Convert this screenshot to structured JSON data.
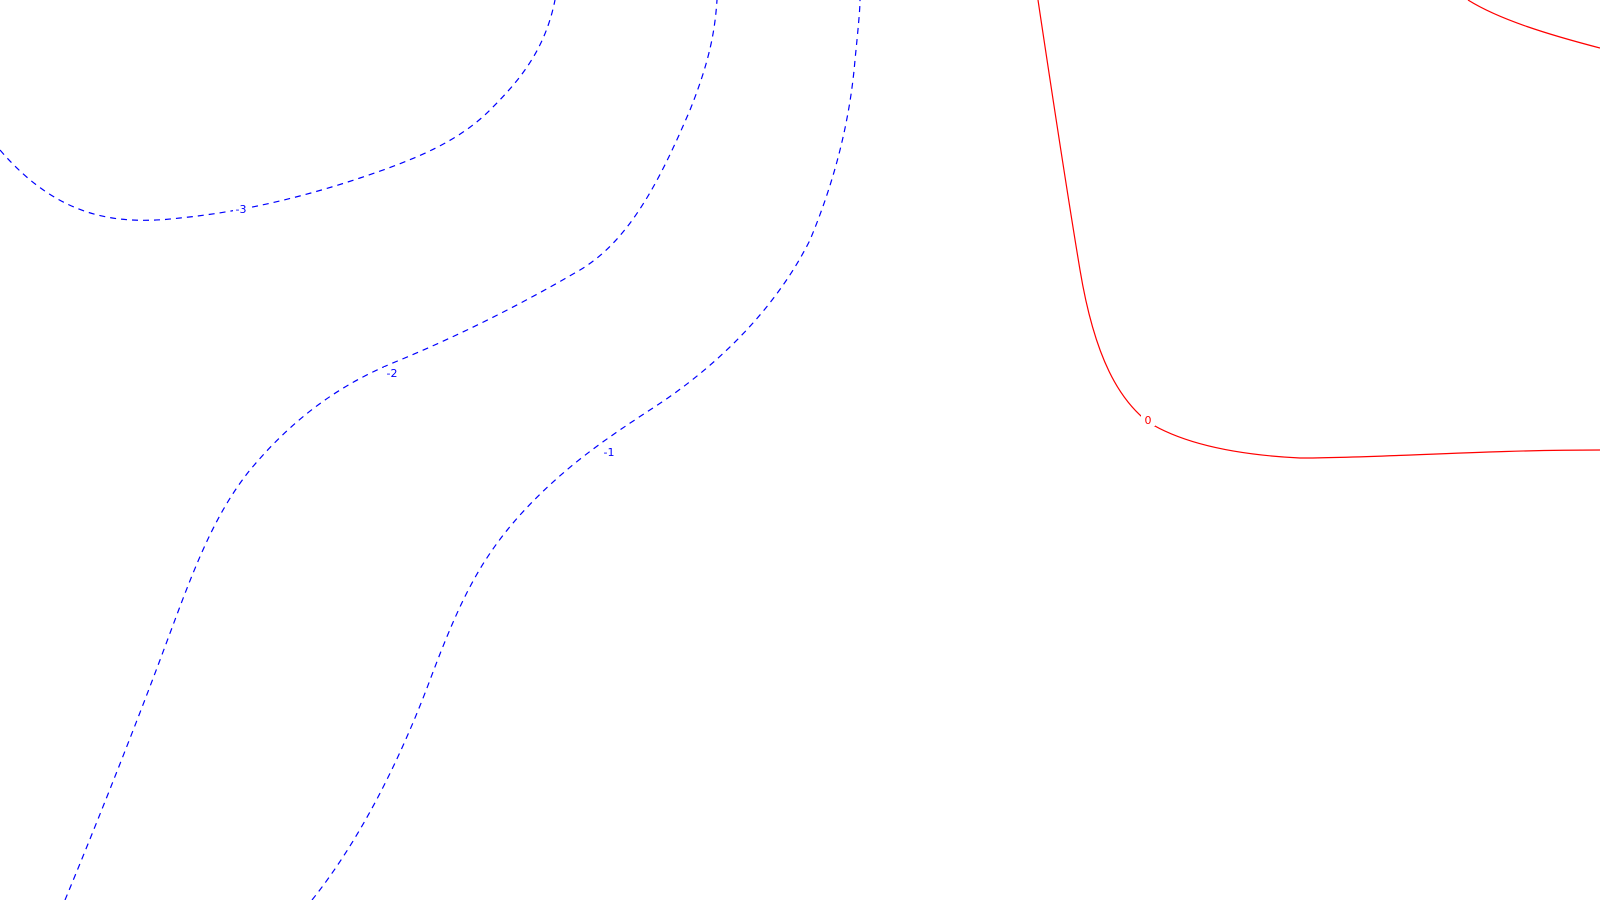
{
  "colors": {
    "background": "#ffffff",
    "negative_contour": "#0000ff",
    "zero_contour": "#ff0000"
  },
  "contours": [
    {
      "id": "contour-neg3",
      "level": -3,
      "label": "-3",
      "style": "dashed",
      "color_key": "negative_contour"
    },
    {
      "id": "contour-neg2",
      "level": -2,
      "label": "-2",
      "style": "dashed",
      "color_key": "negative_contour"
    },
    {
      "id": "contour-neg1",
      "level": -1,
      "label": "-1",
      "style": "dashed",
      "color_key": "negative_contour"
    },
    {
      "id": "contour-zero",
      "level": 0,
      "label": "0",
      "style": "solid",
      "color_key": "zero_contour"
    },
    {
      "id": "contour-zero-corner",
      "level": 0,
      "label": "",
      "style": "solid",
      "color_key": "zero_contour"
    }
  ]
}
